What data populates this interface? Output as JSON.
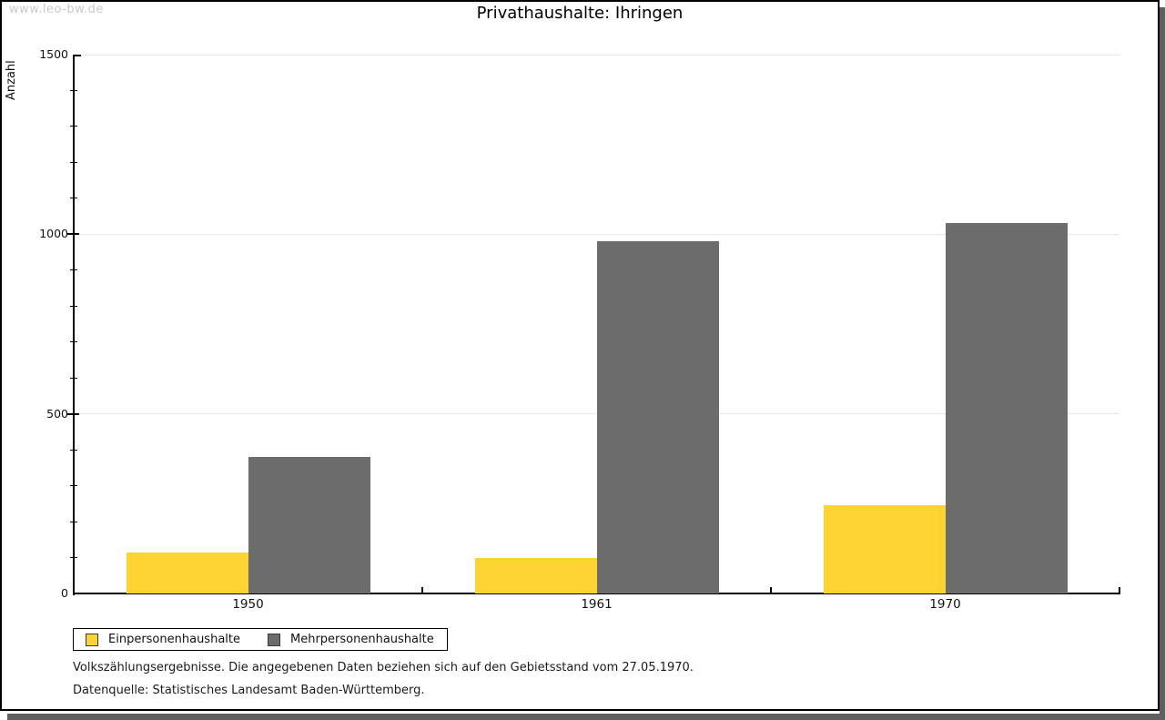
{
  "window": {
    "watermark": "www.leo-bw.de"
  },
  "title": "Privathaushalte: Ihringen",
  "colors": {
    "bar_yellow": "#FCD330",
    "bar_gray": "#6C6C6C",
    "gridline": "#E7E7E7",
    "axis": "#000000",
    "watermark": "#C9C9C9",
    "frame": "#000000",
    "drop_shadow": "#5F5F5F",
    "background": "#FFFFFF"
  },
  "chart_data": {
    "type": "bar",
    "title": "Privathaushalte: Ihringen",
    "xlabel": "",
    "ylabel": "Anzahl",
    "categories": [
      "1950",
      "1961",
      "1970"
    ],
    "series": [
      {
        "name": "Einpersonenhaushalte",
        "color": "#FCD330",
        "values": [
          115,
          100,
          245
        ]
      },
      {
        "name": "Mehrpersonenhaushalte",
        "color": "#6C6C6C",
        "values": [
          380,
          980,
          1030
        ]
      }
    ],
    "ylim": [
      0,
      1500
    ],
    "yticks": [
      0,
      500,
      1000,
      1500
    ],
    "minor_tick_step": 100,
    "grid": "horizontal-major",
    "legend_position": "bottom-left"
  },
  "footnotes": {
    "line1": "Volkszählungsergebnisse. Die angegebenen Daten beziehen sich auf den Gebietsstand vom 27.05.1970.",
    "line2": "Datenquelle: Statistisches Landesamt Baden-Württemberg."
  }
}
